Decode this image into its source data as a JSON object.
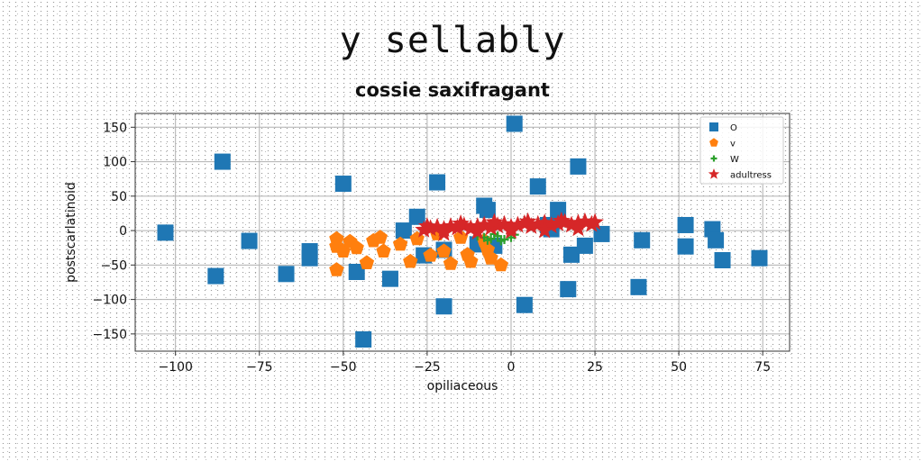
{
  "title": "y sellably",
  "chart_data": {
    "type": "scatter",
    "title": "cossie saxifragant",
    "xlabel": "opiliaceous",
    "ylabel": "postscarlatinoid",
    "xlim": [
      -112,
      83
    ],
    "ylim": [
      -175,
      170
    ],
    "xticks": [
      -100,
      -75,
      -50,
      -25,
      0,
      25,
      50,
      75
    ],
    "yticks": [
      -150,
      -100,
      -50,
      0,
      50,
      100,
      150
    ],
    "grid": true,
    "legend_position": "top-right",
    "series": [
      {
        "name": "O",
        "marker": "square",
        "color": "#1f77b4",
        "points": [
          [
            -103,
            -3
          ],
          [
            -86,
            100
          ],
          [
            -88,
            -66
          ],
          [
            -78,
            -15
          ],
          [
            -67,
            -63
          ],
          [
            -60,
            -30
          ],
          [
            -60,
            -40
          ],
          [
            -50,
            68
          ],
          [
            -46,
            -60
          ],
          [
            -44,
            -158
          ],
          [
            -36,
            -70
          ],
          [
            -32,
            0
          ],
          [
            -28,
            20
          ],
          [
            -26,
            -36
          ],
          [
            -22,
            70
          ],
          [
            -20,
            -110
          ],
          [
            -20,
            -28
          ],
          [
            -10,
            -20
          ],
          [
            -8,
            36
          ],
          [
            -7,
            30
          ],
          [
            -5,
            -22
          ],
          [
            1,
            155
          ],
          [
            4,
            -108
          ],
          [
            8,
            64
          ],
          [
            11,
            8
          ],
          [
            12,
            2
          ],
          [
            14,
            30
          ],
          [
            17,
            -85
          ],
          [
            18,
            -35
          ],
          [
            20,
            93
          ],
          [
            22,
            -22
          ],
          [
            27,
            -5
          ],
          [
            38,
            -82
          ],
          [
            39,
            -14
          ],
          [
            52,
            8
          ],
          [
            52,
            -23
          ],
          [
            60,
            2
          ],
          [
            61,
            -14
          ],
          [
            63,
            -43
          ],
          [
            74,
            -40
          ]
        ]
      },
      {
        "name": "v",
        "marker": "pentagon",
        "color": "#ff7f0e",
        "points": [
          [
            -52,
            -12
          ],
          [
            -52,
            -23
          ],
          [
            -50,
            -30
          ],
          [
            -48,
            -16
          ],
          [
            -52,
            -57
          ],
          [
            -46,
            -25
          ],
          [
            -43,
            -47
          ],
          [
            -41,
            -15
          ],
          [
            -39,
            -10
          ],
          [
            -38,
            -30
          ],
          [
            -33,
            -20
          ],
          [
            -30,
            -45
          ],
          [
            -28,
            -12
          ],
          [
            -24,
            -36
          ],
          [
            -20,
            -30
          ],
          [
            -18,
            -48
          ],
          [
            -15,
            -10
          ],
          [
            -13,
            -35
          ],
          [
            -12,
            -45
          ],
          [
            -7,
            -28
          ],
          [
            -6,
            -40
          ],
          [
            -3,
            -50
          ],
          [
            -8,
            -15
          ],
          [
            -22,
            -5
          ]
        ]
      },
      {
        "name": "W",
        "marker": "plus",
        "color": "#2ca02c",
        "points": [
          [
            -8,
            -10
          ],
          [
            -6,
            -12
          ],
          [
            -4,
            -8
          ],
          [
            -2,
            -13
          ],
          [
            0,
            -10
          ],
          [
            -5,
            -5
          ],
          [
            -10,
            -8
          ],
          [
            -3,
            -15
          ],
          [
            1,
            -6
          ],
          [
            -7,
            -14
          ]
        ]
      },
      {
        "name": "adultress",
        "marker": "star",
        "color": "#d62728",
        "points": [
          [
            -26,
            1
          ],
          [
            -24,
            3
          ],
          [
            -22,
            5
          ],
          [
            -20,
            2
          ],
          [
            -18,
            6
          ],
          [
            -16,
            4
          ],
          [
            -14,
            7
          ],
          [
            -12,
            3
          ],
          [
            -10,
            6
          ],
          [
            -8,
            8
          ],
          [
            -6,
            4
          ],
          [
            -4,
            7
          ],
          [
            -2,
            9
          ],
          [
            0,
            5
          ],
          [
            2,
            8
          ],
          [
            4,
            10
          ],
          [
            6,
            6
          ],
          [
            8,
            9
          ],
          [
            10,
            11
          ],
          [
            12,
            7
          ],
          [
            14,
            10
          ],
          [
            16,
            12
          ],
          [
            18,
            8
          ],
          [
            20,
            11
          ],
          [
            22,
            13
          ],
          [
            24,
            9
          ],
          [
            25,
            12
          ],
          [
            -25,
            6
          ],
          [
            -15,
            10
          ],
          [
            -5,
            12
          ],
          [
            5,
            13
          ],
          [
            15,
            14
          ],
          [
            -20,
            -4
          ],
          [
            -10,
            -2
          ],
          [
            0,
            -1
          ],
          [
            10,
            0
          ],
          [
            20,
            3
          ]
        ]
      }
    ]
  }
}
